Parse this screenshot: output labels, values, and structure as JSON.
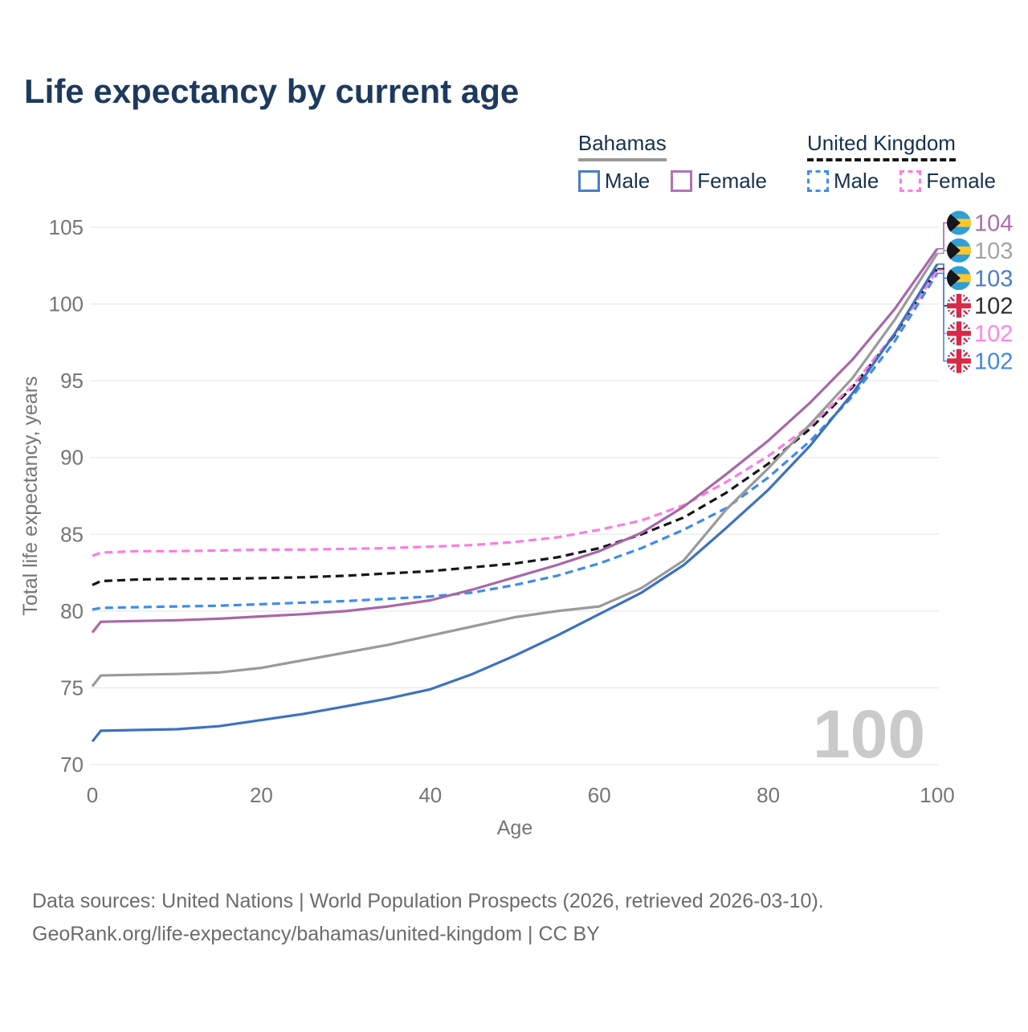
{
  "title": "Life expectancy by current age",
  "watermark": "100",
  "legend": {
    "groups": [
      {
        "country": "Bahamas",
        "line_style": "solid",
        "underline_color": "#9a9a9a",
        "items": [
          {
            "label": "Male",
            "color": "#4a7cc7"
          },
          {
            "label": "Female",
            "color": "#b273b2"
          }
        ]
      },
      {
        "country": "United Kingdom",
        "line_style": "dashed",
        "underline_color": "#161616",
        "items": [
          {
            "label": "Male",
            "color": "#3d8ceb"
          },
          {
            "label": "Female",
            "color": "#fb7ce2"
          }
        ]
      }
    ]
  },
  "footer": {
    "line1": "Data sources: United Nations | World Population Prospects (2026, retrieved 2026-03-10).",
    "line2": "GeoRank.org/life-expectancy/bahamas/united-kingdom | CC BY"
  },
  "chart_data": {
    "type": "line",
    "title": "Life expectancy by current age",
    "xlabel": "Age",
    "ylabel": "Total life expectancy, years",
    "xlim": [
      0,
      100
    ],
    "ylim": [
      70,
      105
    ],
    "x_ticks": [
      0,
      20,
      40,
      60,
      80,
      100
    ],
    "y_ticks": [
      70,
      75,
      80,
      85,
      90,
      95,
      100,
      105
    ],
    "grid": "horizontal",
    "x": [
      0,
      1,
      5,
      10,
      15,
      20,
      25,
      30,
      35,
      40,
      45,
      50,
      55,
      60,
      65,
      70,
      75,
      80,
      85,
      90,
      95,
      100
    ],
    "series": [
      {
        "name": "United Kingdom",
        "country": "United Kingdom",
        "sex": "Total",
        "style": "dashed",
        "color": "#161616",
        "end_label": "102",
        "values": [
          81.7,
          81.95,
          82.05,
          82.1,
          82.1,
          82.15,
          82.2,
          82.3,
          82.45,
          82.6,
          82.85,
          83.1,
          83.5,
          84.1,
          85.0,
          86.1,
          87.7,
          89.6,
          91.9,
          94.6,
          98.0,
          102.3
        ]
      },
      {
        "name": "United Kingdom Male",
        "country": "United Kingdom",
        "sex": "Male",
        "style": "dashed",
        "color": "#3d8ceb",
        "end_label": "102",
        "values": [
          80.1,
          80.2,
          80.25,
          80.3,
          80.35,
          80.45,
          80.55,
          80.65,
          80.8,
          80.95,
          81.2,
          81.7,
          82.3,
          83.1,
          84.1,
          85.3,
          86.7,
          88.7,
          91.1,
          94.0,
          97.6,
          102.0
        ]
      },
      {
        "name": "United Kingdom Female",
        "country": "United Kingdom",
        "sex": "Female",
        "style": "dashed",
        "color": "#fb7ce2",
        "end_label": "102",
        "values": [
          83.6,
          83.8,
          83.9,
          83.9,
          83.95,
          84.0,
          84.0,
          84.05,
          84.1,
          84.2,
          84.3,
          84.5,
          84.8,
          85.3,
          85.9,
          86.9,
          88.4,
          90.1,
          92.1,
          94.7,
          98.1,
          102.2
        ]
      },
      {
        "name": "Bahamas",
        "country": "Bahamas",
        "sex": "Total",
        "style": "solid",
        "color": "#9a9a9a",
        "end_label": "103",
        "values": [
          75.1,
          75.8,
          75.85,
          75.9,
          76.0,
          76.3,
          76.8,
          77.3,
          77.8,
          78.4,
          79.0,
          79.6,
          80.0,
          80.3,
          81.5,
          83.3,
          86.6,
          89.3,
          92.2,
          95.2,
          99.0,
          103.3
        ]
      },
      {
        "name": "Bahamas Male",
        "country": "Bahamas",
        "sex": "Male",
        "style": "solid",
        "color": "#3d72c0",
        "end_label": "103",
        "values": [
          71.5,
          72.2,
          72.25,
          72.3,
          72.5,
          72.9,
          73.3,
          73.8,
          74.3,
          74.9,
          75.9,
          77.1,
          78.4,
          79.8,
          81.2,
          83.0,
          85.4,
          87.9,
          90.8,
          94.2,
          98.1,
          102.6
        ]
      },
      {
        "name": "Bahamas Female",
        "country": "Bahamas",
        "sex": "Female",
        "style": "solid",
        "color": "#a867a8",
        "end_label": "104",
        "values": [
          78.6,
          79.3,
          79.35,
          79.4,
          79.5,
          79.65,
          79.8,
          80.0,
          80.3,
          80.7,
          81.4,
          82.2,
          83.0,
          83.9,
          85.1,
          86.8,
          88.9,
          91.1,
          93.6,
          96.4,
          99.7,
          103.6
        ]
      }
    ],
    "end_labels": [
      {
        "series": "Bahamas Female",
        "text": "104",
        "label_color": "#ad6cad",
        "flag": "bahamas"
      },
      {
        "series": "Bahamas",
        "text": "103",
        "label_color": "#a3a3a3",
        "flag": "bahamas"
      },
      {
        "series": "Bahamas Male",
        "text": "103",
        "label_color": "#4a7cc7",
        "flag": "bahamas"
      },
      {
        "series": "United Kingdom",
        "text": "102",
        "label_color": "#2b2b2b",
        "flag": "uk"
      },
      {
        "series": "United Kingdom Female",
        "text": "102",
        "label_color": "#ff85e8",
        "flag": "uk"
      },
      {
        "series": "United Kingdom Male",
        "text": "102",
        "label_color": "#4287e0",
        "flag": "uk"
      }
    ],
    "flag_colors": {
      "bahamas": {
        "aqua": "#2f9fd6",
        "gold": "#ffc72c",
        "black": "#15151c"
      },
      "uk": {
        "blue": "#29459c",
        "red": "#d62a47",
        "white": "#ffffff"
      }
    },
    "grid_color": "#e9e9e9",
    "legend_position": "top-right"
  }
}
